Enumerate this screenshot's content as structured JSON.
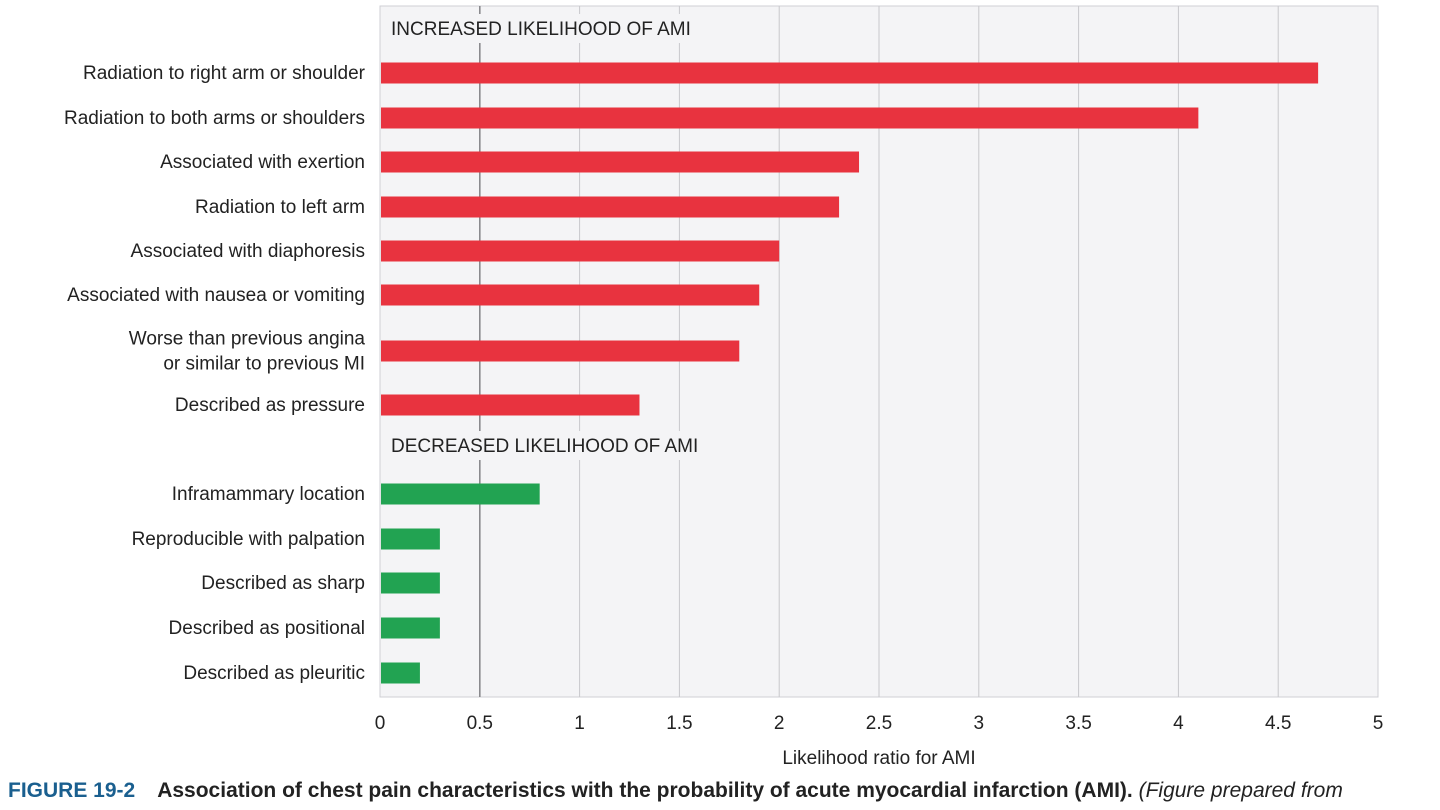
{
  "chart_data": {
    "type": "bar",
    "orientation": "horizontal",
    "xlabel": "Likelihood ratio for AMI",
    "xlim": [
      0,
      5
    ],
    "xticks": [
      "0",
      "0.5",
      "1",
      "1.5",
      "2",
      "2.5",
      "3",
      "3.5",
      "4",
      "4.5",
      "5"
    ],
    "grid": true,
    "reference_line": 0.5,
    "colors": {
      "increased": "#e8333f",
      "decreased": "#22a352",
      "plot_bg": "#f4f4f6",
      "grid": "#c8c8cc"
    },
    "groups": [
      {
        "title": "INCREASED LIKELIHOOD OF AMI",
        "color": "#e8333f",
        "categories": [
          [
            "Radiation to right arm or shoulder"
          ],
          [
            "Radiation to both arms or shoulders"
          ],
          [
            "Associated with exertion"
          ],
          [
            "Radiation to left arm"
          ],
          [
            "Associated with diaphoresis"
          ],
          [
            "Associated with nausea or vomiting"
          ],
          [
            "Worse than previous angina",
            "or similar to previous MI"
          ],
          [
            "Described as pressure"
          ]
        ],
        "values": [
          4.7,
          4.1,
          2.4,
          2.3,
          2.0,
          1.9,
          1.8,
          1.3
        ]
      },
      {
        "title": "DECREASED LIKELIHOOD OF AMI",
        "color": "#22a352",
        "categories": [
          [
            "Inframammary location"
          ],
          [
            "Reproducible with palpation"
          ],
          [
            "Described as sharp"
          ],
          [
            "Described as positional"
          ],
          [
            "Described as pleuritic"
          ]
        ],
        "values": [
          0.8,
          0.3,
          0.3,
          0.3,
          0.2
        ]
      }
    ]
  },
  "caption": {
    "figure_number": "FIGURE 19-2",
    "title": "Association of chest pain characteristics with the probability of acute myocardial infarction (AMI).",
    "source": "(Figure prepared from"
  }
}
